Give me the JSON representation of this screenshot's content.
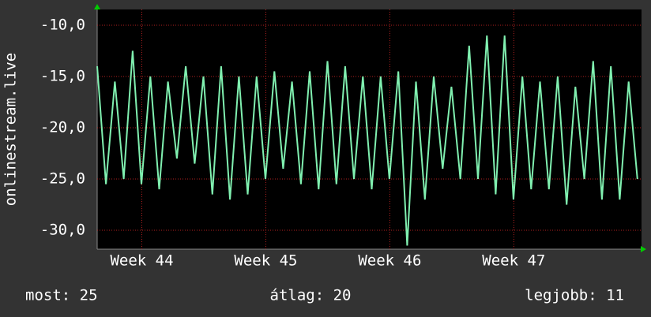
{
  "chart_data": {
    "type": "line",
    "ylabel": "onlinestream.live",
    "x": [
      43.64,
      43.711,
      43.783,
      43.854,
      43.926,
      43.997,
      44.069,
      44.14,
      44.211,
      44.283,
      44.354,
      44.426,
      44.497,
      44.569,
      44.64,
      44.711,
      44.783,
      44.854,
      44.926,
      44.997,
      45.069,
      45.14,
      45.211,
      45.283,
      45.354,
      45.426,
      45.497,
      45.569,
      45.64,
      45.711,
      45.783,
      45.854,
      45.926,
      45.997,
      46.069,
      46.14,
      46.211,
      46.283,
      46.354,
      46.426,
      46.497,
      46.569,
      46.64,
      46.711,
      46.783,
      46.854,
      46.926,
      46.997,
      47.069,
      47.14,
      47.211,
      47.283,
      47.354,
      47.426,
      47.497,
      47.569,
      47.64,
      47.711,
      47.783,
      47.854,
      47.926,
      47.997
    ],
    "series": [
      {
        "name": "onlinestream.live",
        "color": "#80f0b0",
        "values": [
          -14,
          -25.5,
          -15.5,
          -25,
          -12.5,
          -25.5,
          -15,
          -26,
          -15.5,
          -23,
          -14,
          -23.5,
          -15,
          -26.5,
          -14,
          -27,
          -15,
          -26.5,
          -15,
          -25,
          -14.5,
          -24,
          -15.5,
          -25.5,
          -14.5,
          -26,
          -13.5,
          -25.5,
          -14,
          -25,
          -15,
          -26,
          -15,
          -25,
          -14.5,
          -31.5,
          -15.5,
          -27,
          -15,
          -24,
          -16,
          -25,
          -12,
          -25,
          -11,
          -26.5,
          -11,
          -27,
          -15,
          -26,
          -15.5,
          -26,
          -15,
          -27.5,
          -16,
          -25,
          -13.5,
          -27,
          -14,
          -27,
          -15.5,
          -25
        ]
      }
    ],
    "xlim": [
      43.64,
      48.03
    ],
    "xticks": [
      {
        "value": 44,
        "label": "Week 44"
      },
      {
        "value": 45,
        "label": "Week 45"
      },
      {
        "value": 46,
        "label": "Week 46"
      },
      {
        "value": 47,
        "label": "Week 47"
      }
    ],
    "ylim": [
      -31.85,
      -8.46
    ],
    "yticks": [
      {
        "value": -10,
        "label": "-10,0"
      },
      {
        "value": -15,
        "label": "-15,0"
      },
      {
        "value": -20,
        "label": "-20,0"
      },
      {
        "value": -25,
        "label": "-25,0"
      },
      {
        "value": -30,
        "label": "-30,0"
      }
    ],
    "grid": true,
    "footer": [
      "most: 25",
      "átlag: 20",
      "legjobb: 11"
    ]
  }
}
